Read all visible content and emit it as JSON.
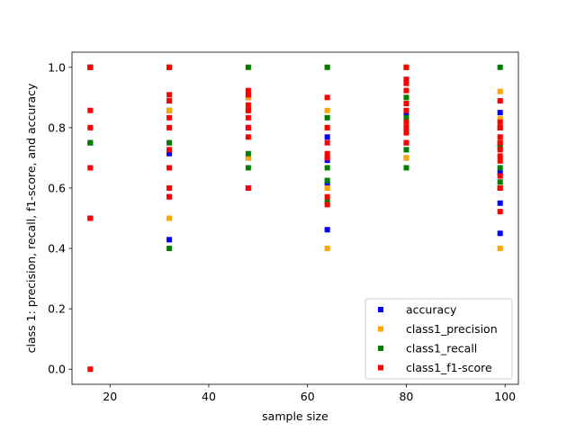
{
  "chart_data": {
    "type": "scatter",
    "title": "",
    "xlabel": "sample size",
    "ylabel": "class 1: precision, recall, f1-score, and accuracy",
    "xlim": [
      12.3,
      102.7
    ],
    "ylim": [
      -0.05,
      1.05
    ],
    "xticks": [
      20,
      40,
      60,
      80,
      100
    ],
    "yticks": [
      0.0,
      0.2,
      0.4,
      0.6,
      0.8,
      1.0
    ],
    "xtick_labels": [
      "20",
      "40",
      "60",
      "80",
      "100"
    ],
    "ytick_labels": [
      "0.0",
      "0.2",
      "0.4",
      "0.6",
      "0.8",
      "1.0"
    ],
    "grid": false,
    "legend_position": "lower right",
    "marker": "square",
    "series": [
      {
        "name": "accuracy",
        "color": "#0000ff",
        "points": [
          [
            16,
            1.0
          ],
          [
            16,
            0.75
          ],
          [
            16,
            0.5
          ],
          [
            32,
            0.857
          ],
          [
            32,
            0.714
          ],
          [
            32,
            0.571
          ],
          [
            32,
            0.429
          ],
          [
            48,
            0.9
          ],
          [
            48,
            0.8
          ],
          [
            48,
            0.7
          ],
          [
            48,
            0.6
          ],
          [
            64,
            0.769
          ],
          [
            64,
            0.692
          ],
          [
            64,
            0.615
          ],
          [
            64,
            0.462
          ],
          [
            80,
            0.95
          ],
          [
            80,
            0.85
          ],
          [
            80,
            0.75
          ],
          [
            80,
            0.7
          ],
          [
            99,
            0.85
          ],
          [
            99,
            0.75
          ],
          [
            99,
            0.65
          ],
          [
            99,
            0.6
          ],
          [
            99,
            0.55
          ],
          [
            99,
            0.45
          ]
        ]
      },
      {
        "name": "class1_precision",
        "color": "#ffa500",
        "points": [
          [
            16,
            1.0
          ],
          [
            16,
            0.5
          ],
          [
            32,
            1.0
          ],
          [
            32,
            0.857
          ],
          [
            32,
            0.75
          ],
          [
            32,
            0.5
          ],
          [
            48,
            1.0
          ],
          [
            48,
            0.9
          ],
          [
            48,
            0.7
          ],
          [
            64,
            1.0
          ],
          [
            64,
            0.857
          ],
          [
            64,
            0.8
          ],
          [
            64,
            0.6
          ],
          [
            64,
            0.4
          ],
          [
            80,
            1.0
          ],
          [
            80,
            0.9
          ],
          [
            80,
            0.8
          ],
          [
            80,
            0.7
          ],
          [
            99,
            0.92
          ],
          [
            99,
            0.83
          ],
          [
            99,
            0.75
          ],
          [
            99,
            0.6
          ],
          [
            99,
            0.4
          ]
        ]
      },
      {
        "name": "class1_recall",
        "color": "#008000",
        "points": [
          [
            16,
            1.0
          ],
          [
            16,
            0.75
          ],
          [
            16,
            0.5
          ],
          [
            32,
            1.0
          ],
          [
            32,
            0.75
          ],
          [
            32,
            0.4
          ],
          [
            48,
            1.0
          ],
          [
            48,
            0.857
          ],
          [
            48,
            0.714
          ],
          [
            48,
            0.667
          ],
          [
            64,
            1.0
          ],
          [
            64,
            0.833
          ],
          [
            64,
            0.667
          ],
          [
            64,
            0.625
          ],
          [
            64,
            0.556
          ],
          [
            80,
            1.0
          ],
          [
            80,
            0.9
          ],
          [
            80,
            0.833
          ],
          [
            80,
            0.727
          ],
          [
            80,
            0.667
          ],
          [
            99,
            1.0
          ],
          [
            99,
            0.8
          ],
          [
            99,
            0.737
          ],
          [
            99,
            0.667
          ],
          [
            99,
            0.62
          ],
          [
            99,
            0.6
          ]
        ]
      },
      {
        "name": "class1_f1-score",
        "color": "#ff0000",
        "points": [
          [
            16,
            1.0
          ],
          [
            16,
            0.857
          ],
          [
            16,
            0.8
          ],
          [
            16,
            0.667
          ],
          [
            16,
            0.5
          ],
          [
            16,
            0.0
          ],
          [
            32,
            1.0
          ],
          [
            32,
            0.909
          ],
          [
            32,
            0.889
          ],
          [
            32,
            0.833
          ],
          [
            32,
            0.8
          ],
          [
            32,
            0.727
          ],
          [
            32,
            0.667
          ],
          [
            32,
            0.6
          ],
          [
            32,
            0.571
          ],
          [
            48,
            0.923
          ],
          [
            48,
            0.909
          ],
          [
            48,
            0.875
          ],
          [
            48,
            0.857
          ],
          [
            48,
            0.833
          ],
          [
            48,
            0.8
          ],
          [
            48,
            0.769
          ],
          [
            48,
            0.6
          ],
          [
            64,
            0.9
          ],
          [
            64,
            0.8
          ],
          [
            64,
            0.75
          ],
          [
            64,
            0.714
          ],
          [
            64,
            0.7
          ],
          [
            64,
            0.571
          ],
          [
            64,
            0.545
          ],
          [
            80,
            1.0
          ],
          [
            80,
            0.96
          ],
          [
            80,
            0.947
          ],
          [
            80,
            0.923
          ],
          [
            80,
            0.88
          ],
          [
            80,
            0.857
          ],
          [
            80,
            0.818
          ],
          [
            80,
            0.8
          ],
          [
            80,
            0.783
          ],
          [
            80,
            0.75
          ],
          [
            99,
            0.889
          ],
          [
            99,
            0.818
          ],
          [
            99,
            0.8
          ],
          [
            99,
            0.769
          ],
          [
            99,
            0.75
          ],
          [
            99,
            0.727
          ],
          [
            99,
            0.706
          ],
          [
            99,
            0.69
          ],
          [
            99,
            0.64
          ],
          [
            99,
            0.6
          ],
          [
            99,
            0.522
          ]
        ]
      }
    ]
  }
}
